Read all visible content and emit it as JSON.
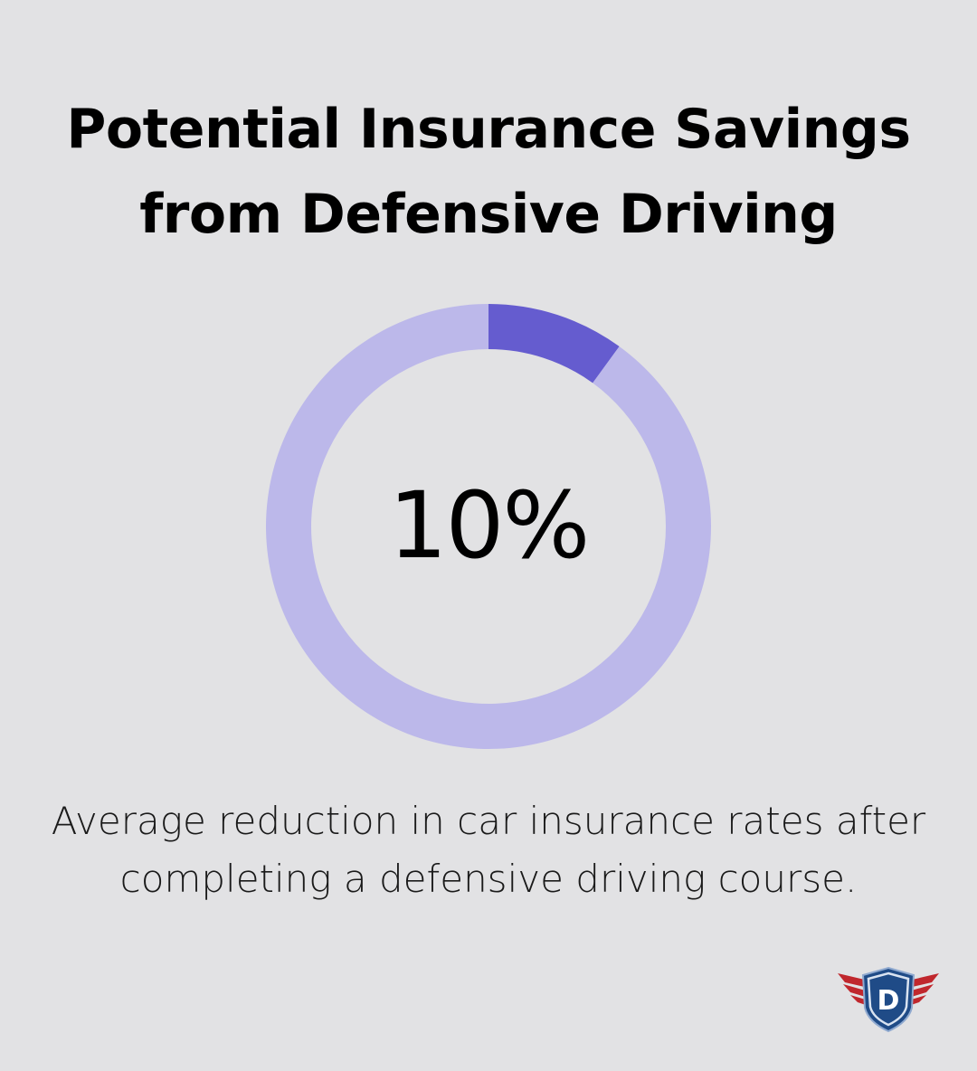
{
  "title": {
    "line1": "Potential Insurance Savings",
    "line2": "from Defensive Driving"
  },
  "chart_data": {
    "type": "pie",
    "style": "donut",
    "slices": [
      {
        "value": 10,
        "color": "#655ccf"
      },
      {
        "value": 90,
        "color": "#bcb8ea"
      }
    ],
    "center_label": "10%"
  },
  "description": {
    "line1": "Average reduction in car insurance rates after",
    "line2": "completing a defensive driving course."
  },
  "logo": {
    "letter": "D",
    "icon": "shield-wings-logo-icon",
    "colors": {
      "shield": "#1f4b87",
      "wings": "#c0272d"
    }
  },
  "colors": {
    "background": "#e2e2e4",
    "accent": "#655ccf",
    "track": "#bcb8ea"
  }
}
